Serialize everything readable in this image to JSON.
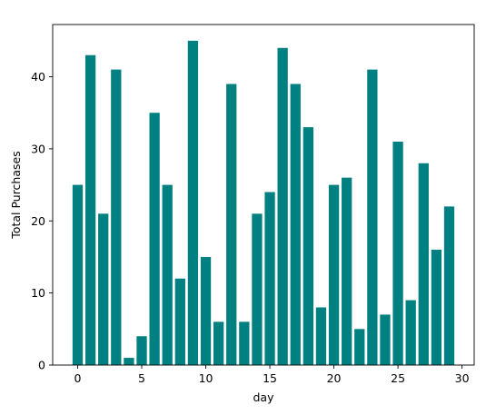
{
  "chart_data": {
    "type": "bar",
    "title": "",
    "xlabel": "day",
    "ylabel": "Total Purchases",
    "x": [
      0,
      1,
      2,
      3,
      4,
      5,
      6,
      7,
      8,
      9,
      10,
      11,
      12,
      13,
      14,
      15,
      16,
      17,
      18,
      19,
      20,
      21,
      22,
      23,
      24,
      25,
      26,
      27,
      28,
      29
    ],
    "values": [
      25,
      43,
      21,
      41,
      1,
      4,
      35,
      25,
      12,
      45,
      15,
      6,
      39,
      6,
      21,
      24,
      44,
      39,
      33,
      8,
      25,
      26,
      5,
      41,
      7,
      31,
      9,
      28,
      16,
      22
    ],
    "xlim": [
      -1.95,
      30.95
    ],
    "ylim": [
      0,
      47.25
    ],
    "xticks": [
      0,
      5,
      10,
      15,
      20,
      25,
      30
    ],
    "yticks": [
      0,
      10,
      20,
      30,
      40
    ],
    "bar_color": "#008080",
    "grid": false,
    "legend": "none"
  }
}
